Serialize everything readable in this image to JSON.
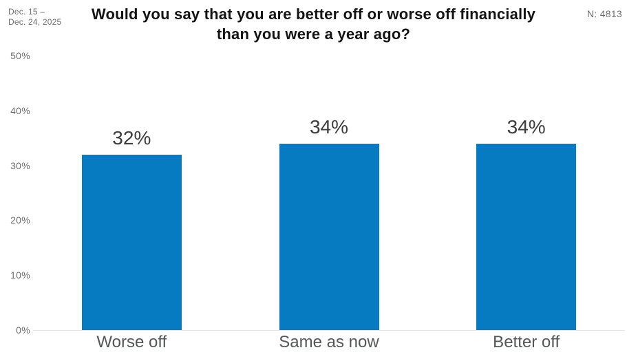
{
  "header": {
    "date_range_line1": "Dec. 15 –",
    "date_range_line2": "Dec. 24, 2025",
    "title_line1": "Would you say that you are better off or worse off financially",
    "title_line2": "than you were a year ago?",
    "sample_label": "N: 4813"
  },
  "chart_data": {
    "type": "bar",
    "title": "Would you say that you are better off or worse off financially than you were a year ago?",
    "categories": [
      "Worse off",
      "Same as now",
      "Better off"
    ],
    "values": [
      32,
      34,
      34
    ],
    "value_labels": [
      "32%",
      "34%",
      "34%"
    ],
    "xlabel": "",
    "ylabel": "",
    "ylim": [
      0,
      50
    ],
    "yticks": [
      0,
      10,
      20,
      30,
      40,
      50
    ],
    "ytick_labels": [
      "0%",
      "10%",
      "20%",
      "30%",
      "40%",
      "50%"
    ],
    "bar_color": "#077bc1",
    "value_label_color": "#3d3d3d",
    "axis_text_color": "#6e6e6e",
    "baseline_color": "#e3e3e3",
    "grid": false,
    "legend": false
  }
}
